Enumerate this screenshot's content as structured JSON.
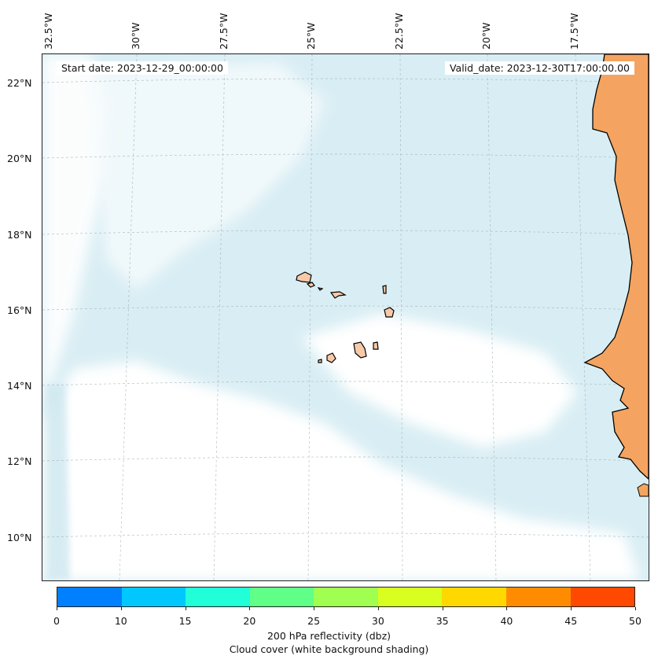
{
  "map": {
    "start_date": "Start date: 2023-12-29_00:00:00",
    "valid_date": "Valid_date: 2023-12-30T17:00:00.00",
    "longitude_labels": [
      "32.5°W",
      "30°W",
      "27.5°W",
      "25°W",
      "22.5°W",
      "20°W",
      "17.5°W"
    ],
    "latitude_labels": [
      "22°N",
      "20°N",
      "18°N",
      "16°N",
      "14°N",
      "12°N",
      "10°N"
    ],
    "ocean_color": "#d9eef4",
    "cloud_color": "#ffffff",
    "land_color": "#f4a460",
    "coast_color": "#000000"
  },
  "colorbar": {
    "ticks": [
      "0",
      "10",
      "15",
      "20",
      "25",
      "30",
      "35",
      "40",
      "45",
      "50"
    ],
    "colors": [
      "#0080ff",
      "#00c8ff",
      "#20ffd8",
      "#60ff88",
      "#a0ff50",
      "#d8ff20",
      "#ffd800",
      "#ff8c00",
      "#ff4800"
    ],
    "label": "200 hPa reflectivity (dbz)",
    "sublabel": "Cloud cover (white background shading)"
  }
}
